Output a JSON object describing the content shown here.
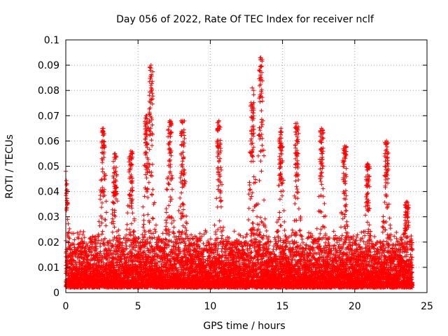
{
  "chart_data": {
    "type": "scatter",
    "title": "Day 056 of 2022, Rate Of TEC Index for receiver nclf",
    "xlabel": "GPS time / hours",
    "ylabel": "ROTI / TECUs",
    "xlim": [
      0,
      25
    ],
    "ylim": [
      0,
      0.1
    ],
    "x_ticks": [
      0,
      5,
      10,
      15,
      20,
      25
    ],
    "x_tick_labels": [
      "0",
      "5",
      "10",
      "15",
      "20",
      "25"
    ],
    "y_ticks": [
      0,
      0.01,
      0.02,
      0.03,
      0.04,
      0.05,
      0.06,
      0.07,
      0.08,
      0.09,
      0.1
    ],
    "y_tick_labels": [
      "0",
      "0.01",
      "0.02",
      "0.03",
      "0.04",
      "0.05",
      "0.06",
      "0.07",
      "0.08",
      "0.09",
      "0.1"
    ],
    "grid": true,
    "marker": "+",
    "color": "#ff0000",
    "series": [
      {
        "name": "ROTI",
        "x_range": [
          0,
          24
        ],
        "typical_band": [
          0.002,
          0.02
        ],
        "peaks": [
          {
            "x": 0.0,
            "y": 0.048
          },
          {
            "x": 2.6,
            "y": 0.065
          },
          {
            "x": 3.4,
            "y": 0.055
          },
          {
            "x": 4.5,
            "y": 0.056
          },
          {
            "x": 5.6,
            "y": 0.07
          },
          {
            "x": 5.9,
            "y": 0.09
          },
          {
            "x": 7.2,
            "y": 0.068
          },
          {
            "x": 8.1,
            "y": 0.068
          },
          {
            "x": 10.6,
            "y": 0.068
          },
          {
            "x": 12.9,
            "y": 0.081
          },
          {
            "x": 13.5,
            "y": 0.093
          },
          {
            "x": 14.9,
            "y": 0.065
          },
          {
            "x": 16.0,
            "y": 0.067
          },
          {
            "x": 17.7,
            "y": 0.065
          },
          {
            "x": 19.3,
            "y": 0.058
          },
          {
            "x": 20.9,
            "y": 0.051
          },
          {
            "x": 22.2,
            "y": 0.06
          },
          {
            "x": 23.6,
            "y": 0.036
          }
        ]
      }
    ]
  }
}
